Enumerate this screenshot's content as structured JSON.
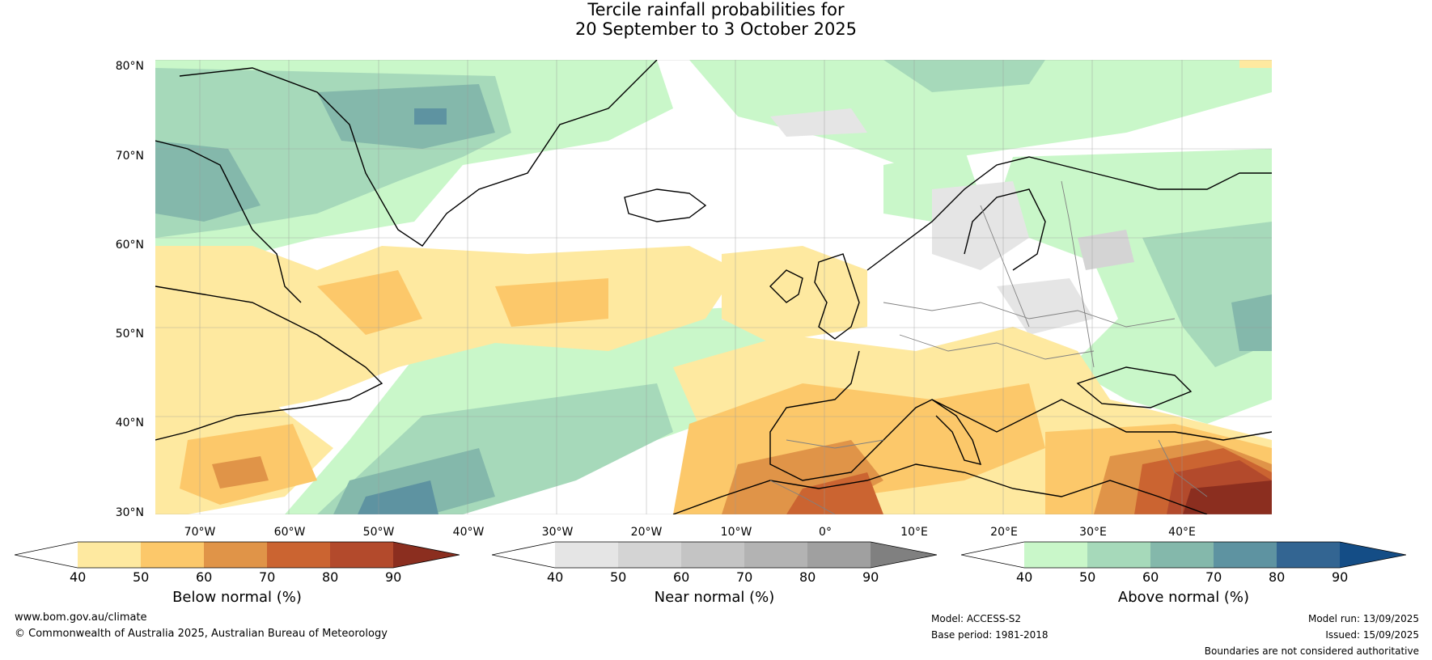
{
  "title_line1": "Tercile rainfall probabilities for",
  "title_line2": "20 September to 3 October 2025",
  "lat_labels": [
    "80°N",
    "70°N",
    "60°N",
    "50°N",
    "40°N",
    "30°N"
  ],
  "lon_labels": [
    "70°W",
    "60°W",
    "50°W",
    "40°W",
    "30°W",
    "20°W",
    "10°W",
    "0°",
    "10°E",
    "20°E",
    "30°E",
    "40°E"
  ],
  "colorbars": [
    {
      "title": "Below normal (%)",
      "ticks": [
        "40",
        "50",
        "60",
        "70",
        "80",
        "90"
      ],
      "colors": [
        "#ffffff",
        "#fee9a0",
        "#fcc86a",
        "#e09448",
        "#cb6431",
        "#b34a2c",
        "#8b2e1f"
      ]
    },
    {
      "title": "Near normal (%)",
      "ticks": [
        "40",
        "50",
        "60",
        "70",
        "80",
        "90"
      ],
      "colors": [
        "#ffffff",
        "#e5e5e5",
        "#d4d4d4",
        "#c4c4c4",
        "#b3b3b3",
        "#a0a0a0",
        "#808080"
      ]
    },
    {
      "title": "Above normal (%)",
      "ticks": [
        "40",
        "50",
        "60",
        "70",
        "80",
        "90"
      ],
      "colors": [
        "#ffffff",
        "#c9f7c9",
        "#a6d9ba",
        "#84b8ab",
        "#5e93a1",
        "#336592",
        "#144d86"
      ]
    }
  ],
  "footer": {
    "url": "www.bom.gov.au/climate",
    "copyright": "© Commonwealth of Australia 2025, Australian Bureau of Meteorology",
    "model": "Model: ACCESS-S2",
    "base_period": "Base period: 1981-2018",
    "model_run": "Model run: 13/09/2025",
    "issued": "Issued: 15/09/2025",
    "disclaimer": "Boundaries are not considered authoritative"
  }
}
